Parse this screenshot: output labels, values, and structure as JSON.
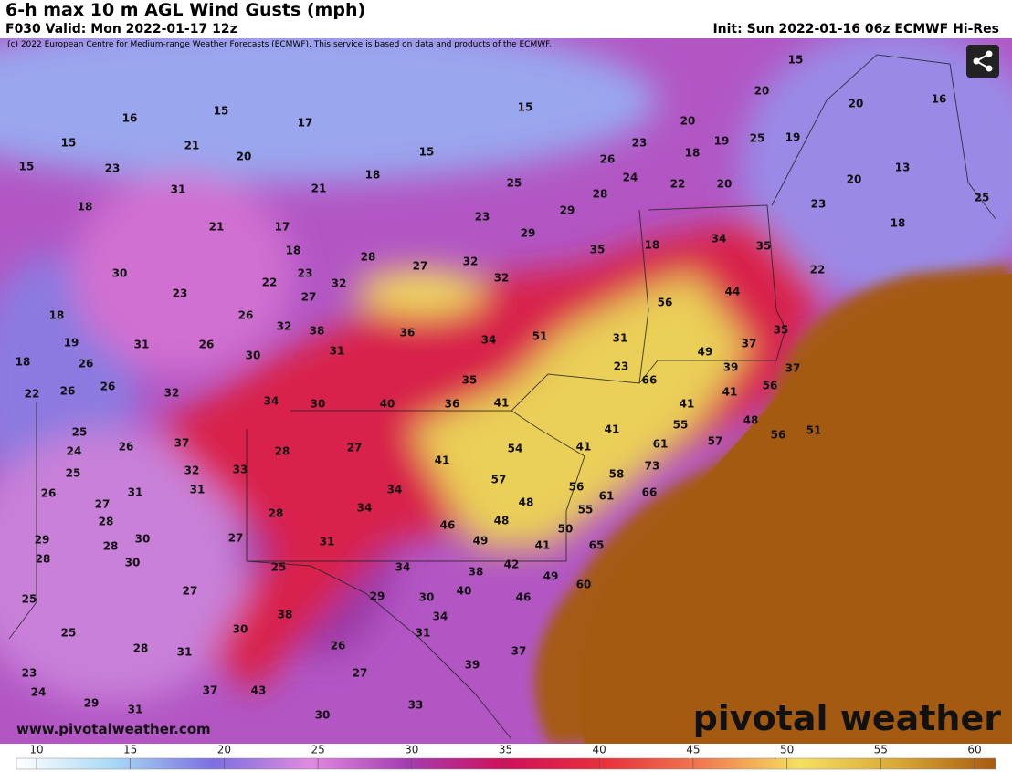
{
  "header": {
    "title": "6-h max 10 m AGL Wind Gusts (mph)",
    "valid": "F030 Valid: Mon 2022-01-17 12z",
    "init": "Init: Sun 2022-01-16 06z ECMWF Hi-Res",
    "copyright": "(c) 2022 European Centre for Medium-range Weather Forecasts (ECMWF). This service is based on data and products of the ECMWF."
  },
  "footer": {
    "website": "www.pivotalweather.com",
    "logo": "pivotal weather"
  },
  "colorbar": {
    "ticks": [
      10,
      15,
      20,
      25,
      30,
      35,
      40,
      45,
      50,
      55,
      60
    ]
  },
  "gust_labels": [
    15,
    20,
    16,
    20,
    16,
    15,
    17,
    15,
    20,
    18,
    19,
    25,
    19,
    23,
    15,
    21,
    20,
    15,
    26,
    24,
    13,
    15,
    23,
    18,
    25,
    22,
    20,
    20,
    31,
    21,
    28,
    25,
    18,
    29,
    23,
    23,
    21,
    17,
    29,
    18,
    35,
    18,
    34,
    35,
    18,
    28,
    27,
    32,
    22,
    30,
    23,
    32,
    22,
    32,
    44,
    27,
    23,
    56,
    18,
    26,
    32,
    38,
    36,
    35,
    19,
    31,
    26,
    51,
    31,
    34,
    37,
    31,
    49,
    30,
    18,
    26,
    39,
    23,
    37,
    35,
    66,
    26,
    56,
    22,
    26,
    32,
    41,
    34,
    30,
    40,
    36,
    41,
    41,
    48,
    55,
    51,
    41,
    56,
    25,
    37,
    26,
    27,
    54,
    61,
    57,
    41,
    24,
    28,
    41,
    73,
    32,
    33,
    25,
    58,
    57,
    56,
    66,
    31,
    34,
    61,
    26,
    31,
    48,
    27,
    34,
    55,
    28,
    48,
    28,
    46,
    50,
    29,
    30,
    49,
    31,
    27,
    65,
    28,
    28,
    30,
    41,
    25,
    34,
    42,
    38,
    49,
    60,
    27,
    40,
    46,
    25,
    29,
    30,
    38,
    34,
    25,
    30,
    31,
    28,
    31,
    26,
    37,
    23,
    27,
    39,
    24,
    37,
    43,
    29,
    33,
    31,
    30
  ]
}
